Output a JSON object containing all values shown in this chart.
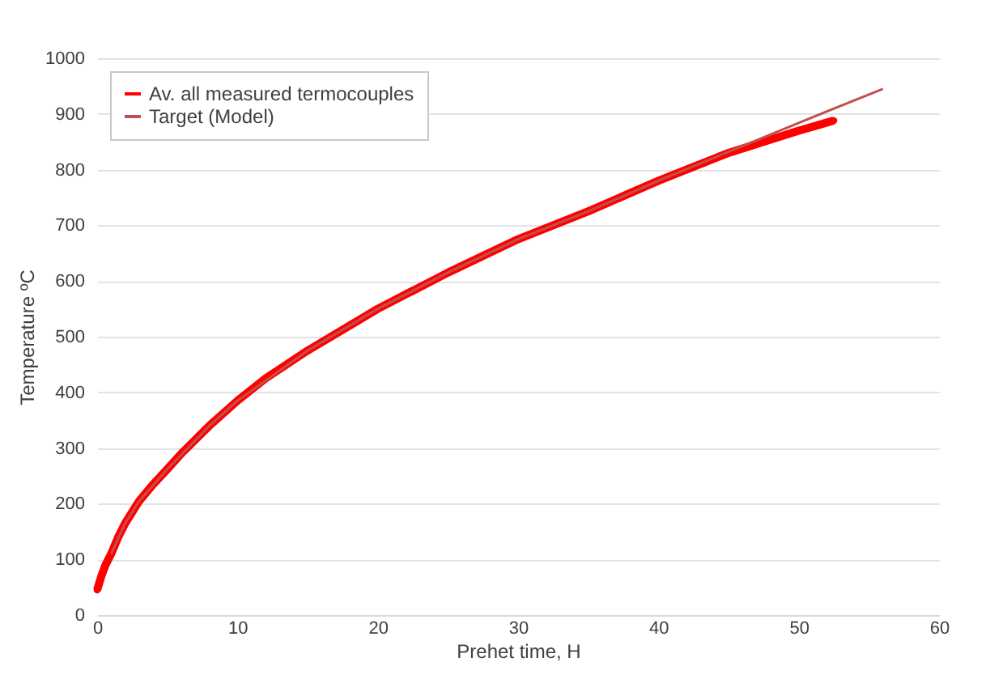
{
  "chart_data": {
    "type": "line",
    "xlabel": "Prehet time, H",
    "ylabel": "Temperature ºC",
    "xlim": [
      0,
      60
    ],
    "xticks": [
      0,
      10,
      20,
      30,
      40,
      50,
      60
    ],
    "ylim": [
      0,
      1000
    ],
    "yticks": [
      0,
      100,
      200,
      300,
      400,
      500,
      600,
      700,
      800,
      900,
      1000
    ],
    "grid": "y",
    "legend": "top left",
    "series": [
      {
        "name": "Av. all measured termocouples",
        "color": "#ff0000",
        "marker": "circle",
        "x": [
          0,
          0.3,
          0.6,
          1,
          1.5,
          2,
          3,
          4,
          5,
          6,
          8,
          10,
          12,
          15,
          20,
          25,
          30,
          35,
          40,
          45,
          50,
          52.5
        ],
        "values": [
          45,
          70,
          90,
          110,
          140,
          165,
          205,
          235,
          262,
          290,
          340,
          385,
          425,
          475,
          550,
          615,
          675,
          725,
          780,
          830,
          870,
          888
        ]
      },
      {
        "name": "Target (Model)",
        "color": "#c0504d",
        "marker": "none",
        "x": [
          1,
          2,
          3,
          5,
          8,
          10,
          15,
          20,
          25,
          30,
          35,
          40,
          45,
          50,
          56
        ],
        "values": [
          110,
          165,
          205,
          262,
          340,
          385,
          475,
          550,
          615,
          675,
          725,
          780,
          832,
          884,
          945
        ]
      }
    ]
  }
}
